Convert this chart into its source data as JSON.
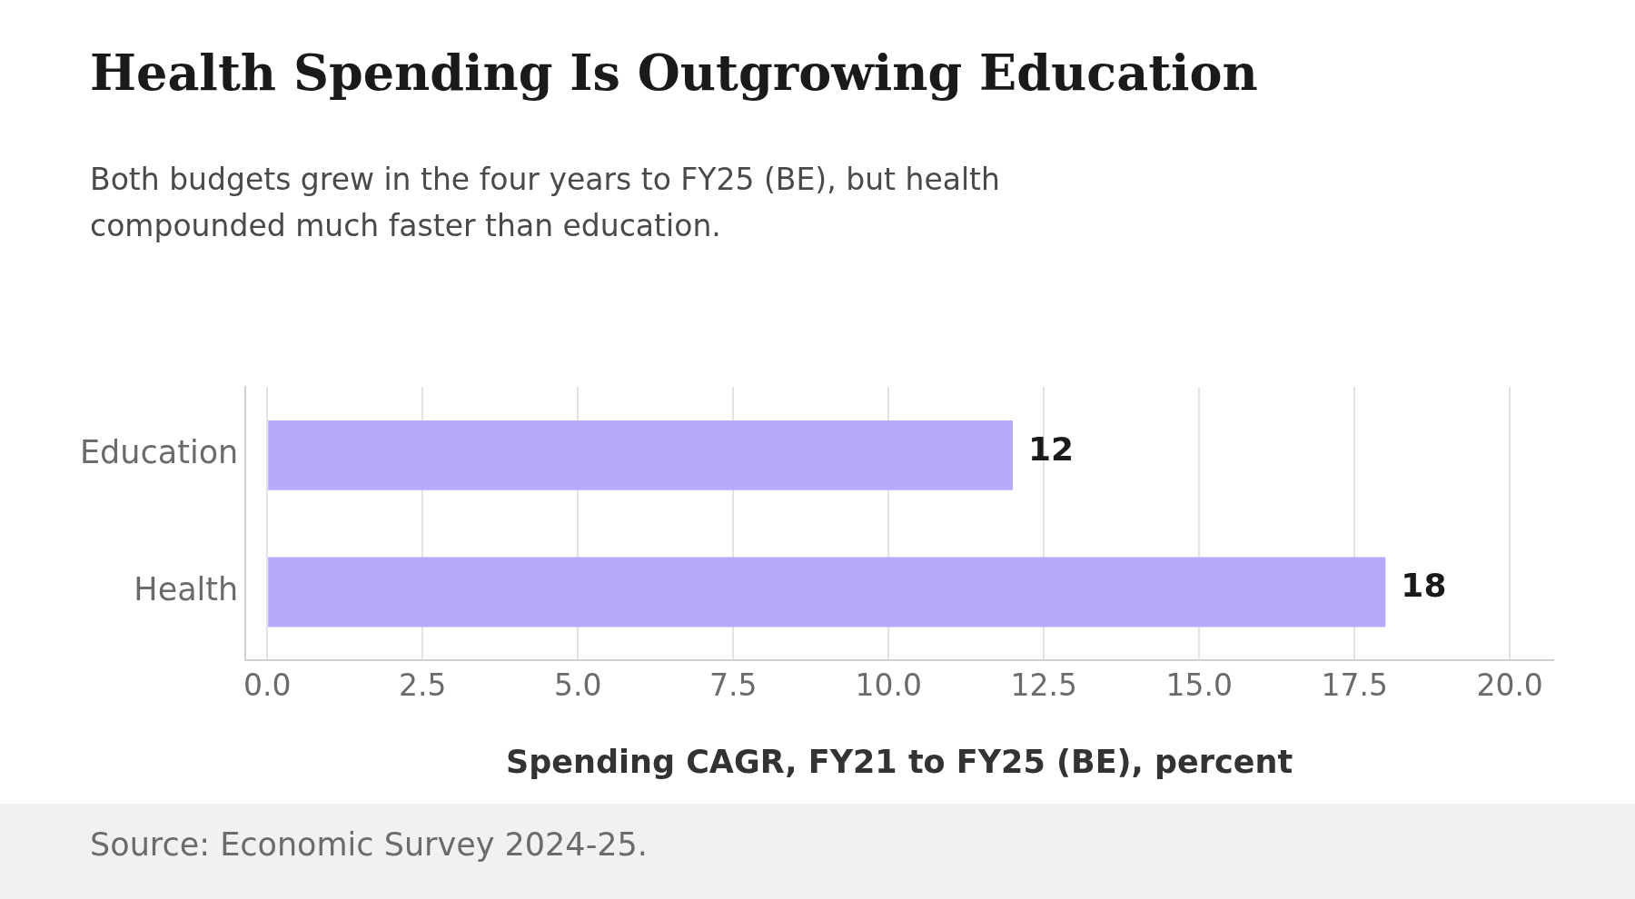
{
  "chart_data": {
    "type": "bar",
    "orientation": "horizontal",
    "title": "Health Spending Is Outgrowing Education",
    "subtitle": "Both budgets grew in the four years to FY25 (BE), but health compounded much faster than education.",
    "xlabel": "Spending CAGR, FY21 to FY25 (BE), percent",
    "annotations": [
      "Source: Economic Survey 2024-25."
    ],
    "categories": [
      "Education",
      "Health"
    ],
    "values": [
      12,
      18
    ],
    "color": "#b8a9fd",
    "xlim": [
      -0.35,
      20.7
    ],
    "xticks": [
      {
        "value": 0,
        "label": "0.0"
      },
      {
        "value": 2.5,
        "label": "2.5"
      },
      {
        "value": 5,
        "label": "5.0"
      },
      {
        "value": 7.5,
        "label": "7.5"
      },
      {
        "value": 10,
        "label": "10.0"
      },
      {
        "value": 12.5,
        "label": "12.5"
      },
      {
        "value": 15,
        "label": "15.0"
      },
      {
        "value": 17.5,
        "label": "17.5"
      },
      {
        "value": 20,
        "label": "20.0"
      }
    ],
    "grid": "x",
    "legend": false,
    "data_labels": true
  }
}
